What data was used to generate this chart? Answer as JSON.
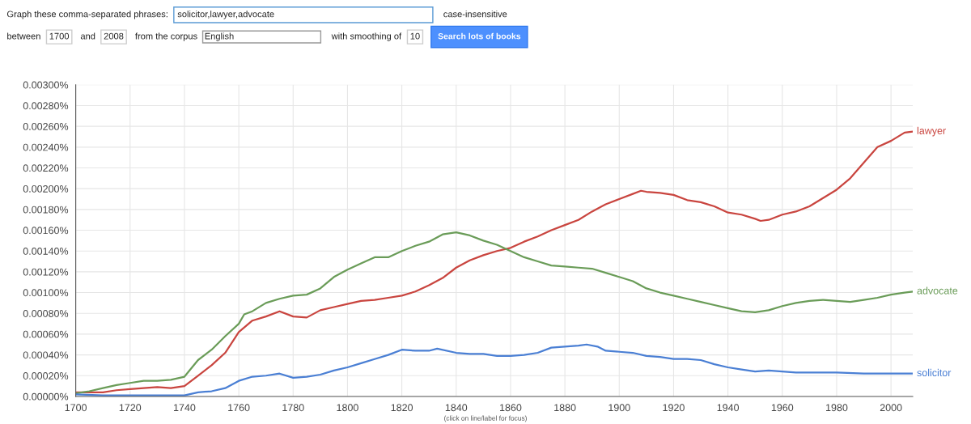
{
  "chart_data": {
    "type": "line",
    "annotations": [
      "Graph these comma-separated phrases:",
      "solicitor,lawyer,advocate",
      "case-insensitive",
      "between",
      "1700",
      "and",
      "2008",
      "from the corpus",
      "English",
      "with smoothing of",
      "10",
      "Search lots of books",
      "(click on line/label for focus)"
    ],
    "xlim": [
      1700,
      2008
    ],
    "xticks": [
      1700,
      1720,
      1740,
      1760,
      1780,
      1800,
      1820,
      1840,
      1860,
      1880,
      1900,
      1920,
      1940,
      1960,
      1980,
      2000
    ],
    "ylim": [
      0,
      0.003
    ],
    "yticks": [
      {
        "value": 0,
        "label": "0.00000%"
      },
      {
        "value": 0.0002,
        "label": "0.00020%"
      },
      {
        "value": 0.0004,
        "label": "0.00040%"
      },
      {
        "value": 0.0006,
        "label": "0.00060%"
      },
      {
        "value": 0.0008,
        "label": "0.00080%"
      },
      {
        "value": 0.001,
        "label": "0.00100%"
      },
      {
        "value": 0.0012,
        "label": "0.00120%"
      },
      {
        "value": 0.0014,
        "label": "0.00140%"
      },
      {
        "value": 0.0016,
        "label": "0.00160%"
      },
      {
        "value": 0.0018,
        "label": "0.00180%"
      },
      {
        "value": 0.002,
        "label": "0.00200%"
      },
      {
        "value": 0.0022,
        "label": "0.00220%"
      },
      {
        "value": 0.0024,
        "label": "0.00240%"
      },
      {
        "value": 0.0026,
        "label": "0.00260%"
      },
      {
        "value": 0.0028,
        "label": "0.00280%"
      },
      {
        "value": 0.003,
        "label": "0.00300%"
      }
    ],
    "grid": true,
    "legend": false,
    "series": [
      {
        "name": "lawyer",
        "color": "#c9453f",
        "x": [
          1700,
          1705,
          1710,
          1715,
          1720,
          1725,
          1730,
          1735,
          1740,
          1745,
          1750,
          1755,
          1760,
          1765,
          1770,
          1775,
          1780,
          1785,
          1790,
          1795,
          1800,
          1805,
          1810,
          1815,
          1820,
          1825,
          1830,
          1835,
          1840,
          1845,
          1850,
          1855,
          1860,
          1865,
          1870,
          1875,
          1880,
          1885,
          1890,
          1895,
          1900,
          1905,
          1908,
          1910,
          1915,
          1920,
          1925,
          1930,
          1935,
          1940,
          1945,
          1950,
          1952,
          1955,
          1960,
          1965,
          1970,
          1975,
          1980,
          1985,
          1990,
          1995,
          2000,
          2005,
          2008
        ],
        "values": [
          4e-05,
          4e-05,
          4e-05,
          6e-05,
          7e-05,
          8e-05,
          9e-05,
          8e-05,
          0.0001,
          0.0002,
          0.0003,
          0.00042,
          0.00062,
          0.00073,
          0.00077,
          0.00082,
          0.00077,
          0.00076,
          0.00083,
          0.00086,
          0.00089,
          0.00092,
          0.00093,
          0.00095,
          0.00097,
          0.00101,
          0.00107,
          0.00114,
          0.00124,
          0.00131,
          0.00136,
          0.0014,
          0.00143,
          0.00149,
          0.00154,
          0.0016,
          0.00165,
          0.0017,
          0.00178,
          0.00185,
          0.0019,
          0.00195,
          0.00198,
          0.00197,
          0.00196,
          0.00194,
          0.00189,
          0.00187,
          0.00183,
          0.00177,
          0.00175,
          0.00171,
          0.00169,
          0.0017,
          0.00175,
          0.00178,
          0.00183,
          0.00191,
          0.00199,
          0.0021,
          0.00225,
          0.0024,
          0.00246,
          0.00254,
          0.00255
        ]
      },
      {
        "name": "advocate",
        "color": "#6a9c58",
        "x": [
          1700,
          1705,
          1710,
          1715,
          1720,
          1725,
          1730,
          1735,
          1740,
          1745,
          1750,
          1755,
          1760,
          1762,
          1765,
          1770,
          1775,
          1780,
          1785,
          1790,
          1795,
          1800,
          1805,
          1810,
          1815,
          1820,
          1825,
          1830,
          1835,
          1840,
          1845,
          1850,
          1855,
          1860,
          1865,
          1870,
          1875,
          1880,
          1885,
          1890,
          1895,
          1900,
          1905,
          1910,
          1915,
          1920,
          1925,
          1930,
          1935,
          1940,
          1945,
          1950,
          1955,
          1960,
          1965,
          1970,
          1975,
          1980,
          1985,
          1990,
          1995,
          2000,
          2005,
          2008
        ],
        "values": [
          3e-05,
          5e-05,
          8e-05,
          0.00011,
          0.00013,
          0.00015,
          0.00015,
          0.00016,
          0.00019,
          0.00035,
          0.00045,
          0.00058,
          0.0007,
          0.00079,
          0.00082,
          0.0009,
          0.00094,
          0.00097,
          0.00098,
          0.00104,
          0.00115,
          0.00122,
          0.00128,
          0.00134,
          0.00134,
          0.0014,
          0.00145,
          0.00149,
          0.00156,
          0.00158,
          0.00155,
          0.0015,
          0.00146,
          0.0014,
          0.00134,
          0.0013,
          0.00126,
          0.00125,
          0.00124,
          0.00123,
          0.00119,
          0.00115,
          0.00111,
          0.00104,
          0.001,
          0.00097,
          0.00094,
          0.00091,
          0.00088,
          0.00085,
          0.00082,
          0.00081,
          0.00083,
          0.00087,
          0.0009,
          0.00092,
          0.00093,
          0.00092,
          0.00091,
          0.00093,
          0.00095,
          0.00098,
          0.001,
          0.00101
        ]
      },
      {
        "name": "solicitor",
        "color": "#4a7fd4",
        "x": [
          1700,
          1710,
          1720,
          1730,
          1740,
          1745,
          1750,
          1755,
          1760,
          1765,
          1770,
          1775,
          1780,
          1785,
          1790,
          1795,
          1800,
          1805,
          1810,
          1815,
          1820,
          1825,
          1830,
          1833,
          1840,
          1845,
          1850,
          1855,
          1860,
          1865,
          1870,
          1875,
          1880,
          1885,
          1888,
          1892,
          1895,
          1900,
          1905,
          1910,
          1915,
          1920,
          1925,
          1930,
          1935,
          1940,
          1945,
          1950,
          1955,
          1960,
          1965,
          1970,
          1980,
          1990,
          2000,
          2008
        ],
        "values": [
          2e-05,
          1e-05,
          1e-05,
          1e-05,
          1e-05,
          4e-05,
          5e-05,
          8e-05,
          0.00015,
          0.00019,
          0.0002,
          0.00022,
          0.00018,
          0.00019,
          0.00021,
          0.00025,
          0.00028,
          0.00032,
          0.00036,
          0.0004,
          0.00045,
          0.00044,
          0.00044,
          0.00046,
          0.00042,
          0.00041,
          0.00041,
          0.00039,
          0.00039,
          0.0004,
          0.00042,
          0.00047,
          0.00048,
          0.00049,
          0.0005,
          0.00048,
          0.00044,
          0.00043,
          0.00042,
          0.00039,
          0.00038,
          0.00036,
          0.00036,
          0.00035,
          0.00031,
          0.00028,
          0.00026,
          0.00024,
          0.00025,
          0.00024,
          0.00023,
          0.00023,
          0.00023,
          0.00022,
          0.00022,
          0.00022
        ]
      }
    ]
  }
}
